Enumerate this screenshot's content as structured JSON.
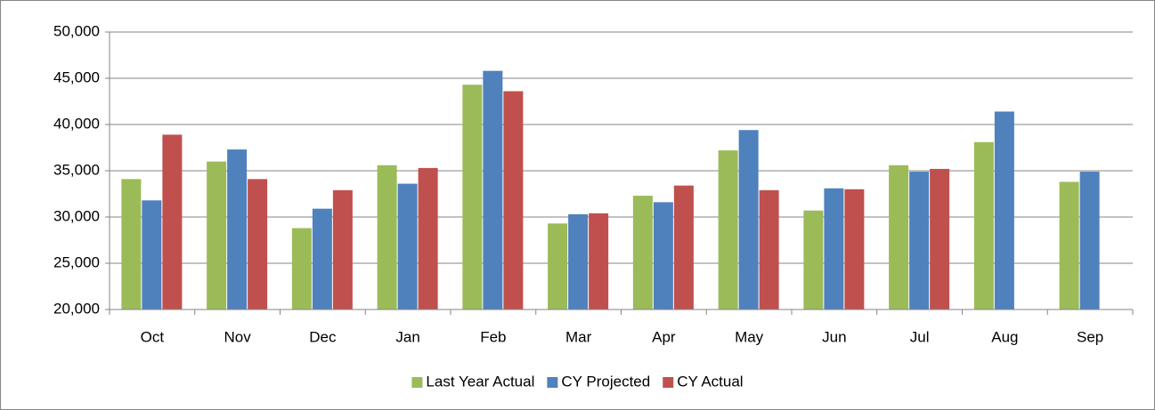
{
  "chart_data": {
    "type": "bar",
    "categories": [
      "Oct",
      "Nov",
      "Dec",
      "Jan",
      "Feb",
      "Mar",
      "Apr",
      "May",
      "Jun",
      "Jul",
      "Aug",
      "Sep"
    ],
    "series": [
      {
        "name": "Last Year Actual",
        "color": "#9bbb59",
        "values": [
          34100,
          36000,
          28800,
          35600,
          44300,
          29300,
          32300,
          37200,
          30700,
          35600,
          38100,
          33800
        ]
      },
      {
        "name": "CY Projected",
        "color": "#4f81bd",
        "values": [
          31800,
          37300,
          30900,
          33600,
          45800,
          30300,
          31600,
          39400,
          33100,
          34900,
          41400,
          34900
        ]
      },
      {
        "name": "CY Actual",
        "color": "#c0504d",
        "values": [
          38900,
          34100,
          32900,
          35300,
          43600,
          30400,
          33400,
          32900,
          33000,
          35200,
          null,
          null
        ]
      }
    ],
    "ylim": [
      20000,
      50000
    ],
    "yticks": [
      {
        "value": 20000,
        "label": "20,000"
      },
      {
        "value": 25000,
        "label": "25,000"
      },
      {
        "value": 30000,
        "label": "30,000"
      },
      {
        "value": 35000,
        "label": "35,000"
      },
      {
        "value": 40000,
        "label": "40,000"
      },
      {
        "value": 45000,
        "label": "45,000"
      },
      {
        "value": 50000,
        "label": "50,000"
      }
    ],
    "grid": true,
    "legend": "bottom"
  }
}
